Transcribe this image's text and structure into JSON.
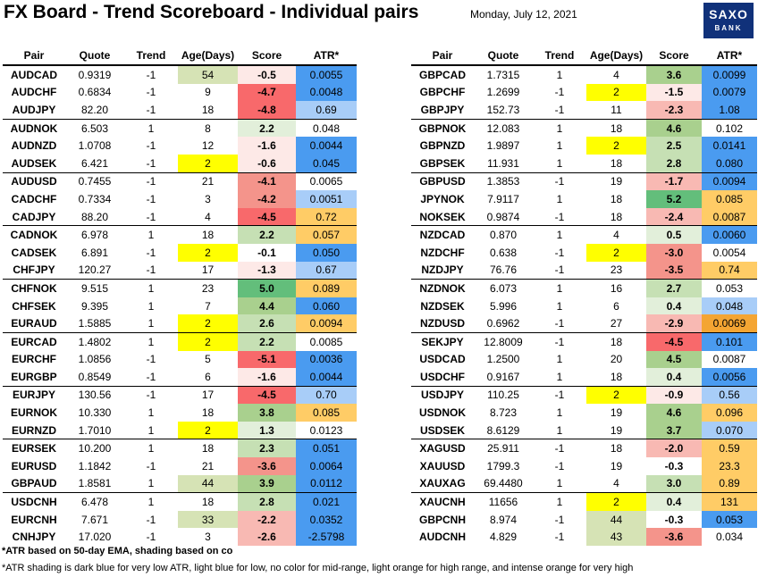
{
  "title": "FX Board - Trend Scoreboard - Individual pairs",
  "date": "Monday, July 12, 2021",
  "logo": {
    "line1": "SAXO",
    "line2": "BANK"
  },
  "headers": [
    "Pair",
    "Quote",
    "Trend",
    "Age(Days)",
    "Score",
    "ATR*"
  ],
  "colors": {
    "age_green": "#d6e3b5",
    "age_yellow": "#ffff00",
    "score_green_1": "#e2efda",
    "score_green_2": "#c6e0b4",
    "score_green_3": "#a9d08e",
    "score_green_4": "#63be7b",
    "score_red_1": "#fde9e7",
    "score_red_2": "#f8b9b3",
    "score_red_3": "#f4948b",
    "score_red_4": "#f8696b",
    "atr_dark_blue": "#4a9bf0",
    "atr_light_blue": "#a8cdf8",
    "atr_light_orange": "#ffcc66",
    "atr_intense_orange": "#f4a533"
  },
  "left_rows": [
    {
      "pair": "AUDCAD",
      "quote": "0.9319",
      "trend": "-1",
      "age": "54",
      "score": "-0.5",
      "atr": "0.0055",
      "age_bg": "age_green",
      "score_bg": "score_red_1",
      "atr_bg": "atr_dark_blue"
    },
    {
      "pair": "AUDCHF",
      "quote": "0.6834",
      "trend": "-1",
      "age": "9",
      "score": "-4.7",
      "atr": "0.0048",
      "age_bg": "",
      "score_bg": "score_red_4",
      "atr_bg": "atr_dark_blue"
    },
    {
      "pair": "AUDJPY",
      "quote": "82.20",
      "trend": "-1",
      "age": "18",
      "score": "-4.8",
      "atr": "0.69",
      "age_bg": "",
      "score_bg": "score_red_4",
      "atr_bg": "atr_light_blue"
    },
    {
      "pair": "AUDNOK",
      "quote": "6.503",
      "trend": "1",
      "age": "8",
      "score": "2.2",
      "atr": "0.048",
      "age_bg": "",
      "score_bg": "score_green_1",
      "atr_bg": "",
      "sep": true
    },
    {
      "pair": "AUDNZD",
      "quote": "1.0708",
      "trend": "-1",
      "age": "12",
      "score": "-1.6",
      "atr": "0.0044",
      "age_bg": "",
      "score_bg": "score_red_1",
      "atr_bg": "atr_dark_blue"
    },
    {
      "pair": "AUDSEK",
      "quote": "6.421",
      "trend": "-1",
      "age": "2",
      "score": "-0.6",
      "atr": "0.045",
      "age_bg": "age_yellow",
      "score_bg": "score_red_1",
      "atr_bg": "atr_dark_blue"
    },
    {
      "pair": "AUDUSD",
      "quote": "0.7455",
      "trend": "-1",
      "age": "21",
      "score": "-4.1",
      "atr": "0.0065",
      "age_bg": "",
      "score_bg": "score_red_3",
      "atr_bg": "",
      "sep": true
    },
    {
      "pair": "CADCHF",
      "quote": "0.7334",
      "trend": "-1",
      "age": "3",
      "score": "-4.2",
      "atr": "0.0051",
      "age_bg": "",
      "score_bg": "score_red_3",
      "atr_bg": "atr_light_blue"
    },
    {
      "pair": "CADJPY",
      "quote": "88.20",
      "trend": "-1",
      "age": "4",
      "score": "-4.5",
      "atr": "0.72",
      "age_bg": "",
      "score_bg": "score_red_4",
      "atr_bg": "atr_light_orange"
    },
    {
      "pair": "CADNOK",
      "quote": "6.978",
      "trend": "1",
      "age": "18",
      "score": "2.2",
      "atr": "0.057",
      "age_bg": "",
      "score_bg": "score_green_2",
      "atr_bg": "atr_light_orange",
      "sep": true
    },
    {
      "pair": "CADSEK",
      "quote": "6.891",
      "trend": "-1",
      "age": "2",
      "score": "-0.1",
      "atr": "0.050",
      "age_bg": "age_yellow",
      "score_bg": "",
      "atr_bg": "atr_dark_blue"
    },
    {
      "pair": "CHFJPY",
      "quote": "120.27",
      "trend": "-1",
      "age": "17",
      "score": "-1.3",
      "atr": "0.67",
      "age_bg": "",
      "score_bg": "score_red_1",
      "atr_bg": "atr_light_blue"
    },
    {
      "pair": "CHFNOK",
      "quote": "9.515",
      "trend": "1",
      "age": "23",
      "score": "5.0",
      "atr": "0.089",
      "age_bg": "",
      "score_bg": "score_green_4",
      "atr_bg": "atr_light_orange",
      "sep": true
    },
    {
      "pair": "CHFSEK",
      "quote": "9.395",
      "trend": "1",
      "age": "7",
      "score": "4.4",
      "atr": "0.060",
      "age_bg": "",
      "score_bg": "score_green_3",
      "atr_bg": "atr_dark_blue"
    },
    {
      "pair": "EURAUD",
      "quote": "1.5885",
      "trend": "1",
      "age": "2",
      "score": "2.6",
      "atr": "0.0094",
      "age_bg": "age_yellow",
      "score_bg": "score_green_2",
      "atr_bg": "atr_light_orange"
    },
    {
      "pair": "EURCAD",
      "quote": "1.4802",
      "trend": "1",
      "age": "2",
      "score": "2.2",
      "atr": "0.0085",
      "age_bg": "age_yellow",
      "score_bg": "score_green_2",
      "atr_bg": "",
      "sep": true
    },
    {
      "pair": "EURCHF",
      "quote": "1.0856",
      "trend": "-1",
      "age": "5",
      "score": "-5.1",
      "atr": "0.0036",
      "age_bg": "",
      "score_bg": "score_red_4",
      "atr_bg": "atr_dark_blue"
    },
    {
      "pair": "EURGBP",
      "quote": "0.8549",
      "trend": "-1",
      "age": "6",
      "score": "-1.6",
      "atr": "0.0044",
      "age_bg": "",
      "score_bg": "score_red_1",
      "atr_bg": "atr_dark_blue"
    },
    {
      "pair": "EURJPY",
      "quote": "130.56",
      "trend": "-1",
      "age": "17",
      "score": "-4.5",
      "atr": "0.70",
      "age_bg": "",
      "score_bg": "score_red_4",
      "atr_bg": "atr_light_blue",
      "sep": true
    },
    {
      "pair": "EURNOK",
      "quote": "10.330",
      "trend": "1",
      "age": "18",
      "score": "3.8",
      "atr": "0.085",
      "age_bg": "",
      "score_bg": "score_green_3",
      "atr_bg": "atr_light_orange"
    },
    {
      "pair": "EURNZD",
      "quote": "1.7010",
      "trend": "1",
      "age": "2",
      "score": "1.3",
      "atr": "0.0123",
      "age_bg": "age_yellow",
      "score_bg": "score_green_1",
      "atr_bg": ""
    },
    {
      "pair": "EURSEK",
      "quote": "10.200",
      "trend": "1",
      "age": "18",
      "score": "2.3",
      "atr": "0.051",
      "age_bg": "",
      "score_bg": "score_green_2",
      "atr_bg": "atr_dark_blue",
      "sep": true
    },
    {
      "pair": "EURUSD",
      "quote": "1.1842",
      "trend": "-1",
      "age": "21",
      "score": "-3.6",
      "atr": "0.0064",
      "age_bg": "",
      "score_bg": "score_red_3",
      "atr_bg": "atr_dark_blue"
    },
    {
      "pair": "GBPAUD",
      "quote": "1.8581",
      "trend": "1",
      "age": "44",
      "score": "3.9",
      "atr": "0.0112",
      "age_bg": "age_green",
      "score_bg": "score_green_3",
      "atr_bg": "atr_dark_blue"
    },
    {
      "pair": "USDCNH",
      "quote": "6.478",
      "trend": "1",
      "age": "18",
      "score": "2.8",
      "atr": "0.021",
      "age_bg": "",
      "score_bg": "score_green_2",
      "atr_bg": "atr_dark_blue",
      "sep": true
    },
    {
      "pair": "EURCNH",
      "quote": "7.671",
      "trend": "-1",
      "age": "33",
      "score": "-2.2",
      "atr": "0.0352",
      "age_bg": "age_green",
      "score_bg": "score_red_2",
      "atr_bg": "atr_dark_blue"
    },
    {
      "pair": "CNHJPY",
      "quote": "17.020",
      "trend": "-1",
      "age": "3",
      "score": "-2.6",
      "atr": "-2.5798",
      "age_bg": "",
      "score_bg": "score_red_2",
      "atr_bg": "atr_dark_blue"
    }
  ],
  "right_rows": [
    {
      "pair": "GBPCAD",
      "quote": "1.7315",
      "trend": "1",
      "age": "4",
      "score": "3.6",
      "atr": "0.0099",
      "age_bg": "",
      "score_bg": "score_green_3",
      "atr_bg": "atr_dark_blue"
    },
    {
      "pair": "GBPCHF",
      "quote": "1.2699",
      "trend": "-1",
      "age": "2",
      "score": "-1.5",
      "atr": "0.0079",
      "age_bg": "age_yellow",
      "score_bg": "score_red_1",
      "atr_bg": "atr_dark_blue"
    },
    {
      "pair": "GBPJPY",
      "quote": "152.73",
      "trend": "-1",
      "age": "11",
      "score": "-2.3",
      "atr": "1.08",
      "age_bg": "",
      "score_bg": "score_red_2",
      "atr_bg": "atr_dark_blue"
    },
    {
      "pair": "GBPNOK",
      "quote": "12.083",
      "trend": "1",
      "age": "18",
      "score": "4.6",
      "atr": "0.102",
      "age_bg": "",
      "score_bg": "score_green_3",
      "atr_bg": "",
      "sep": true
    },
    {
      "pair": "GBPNZD",
      "quote": "1.9897",
      "trend": "1",
      "age": "2",
      "score": "2.5",
      "atr": "0.0141",
      "age_bg": "age_yellow",
      "score_bg": "score_green_2",
      "atr_bg": "atr_dark_blue"
    },
    {
      "pair": "GBPSEK",
      "quote": "11.931",
      "trend": "1",
      "age": "18",
      "score": "2.8",
      "atr": "0.080",
      "age_bg": "",
      "score_bg": "score_green_2",
      "atr_bg": "atr_dark_blue"
    },
    {
      "pair": "GBPUSD",
      "quote": "1.3853",
      "trend": "-1",
      "age": "19",
      "score": "-1.7",
      "atr": "0.0094",
      "age_bg": "",
      "score_bg": "score_red_2",
      "atr_bg": "atr_dark_blue",
      "sep": true
    },
    {
      "pair": "JPYNOK",
      "quote": "7.9117",
      "trend": "1",
      "age": "18",
      "score": "5.2",
      "atr": "0.085",
      "age_bg": "",
      "score_bg": "score_green_4",
      "atr_bg": "atr_light_orange"
    },
    {
      "pair": "NOKSEK",
      "quote": "0.9874",
      "trend": "-1",
      "age": "18",
      "score": "-2.4",
      "atr": "0.0087",
      "age_bg": "",
      "score_bg": "score_red_2",
      "atr_bg": "atr_light_orange"
    },
    {
      "pair": "NZDCAD",
      "quote": "0.870",
      "trend": "1",
      "age": "4",
      "score": "0.5",
      "atr": "0.0060",
      "age_bg": "",
      "score_bg": "score_green_1",
      "atr_bg": "atr_dark_blue",
      "sep": true
    },
    {
      "pair": "NZDCHF",
      "quote": "0.638",
      "trend": "-1",
      "age": "2",
      "score": "-3.0",
      "atr": "0.0054",
      "age_bg": "age_yellow",
      "score_bg": "score_red_3",
      "atr_bg": ""
    },
    {
      "pair": "NZDJPY",
      "quote": "76.76",
      "trend": "-1",
      "age": "23",
      "score": "-3.5",
      "atr": "0.74",
      "age_bg": "",
      "score_bg": "score_red_3",
      "atr_bg": "atr_light_orange"
    },
    {
      "pair": "NZDNOK",
      "quote": "6.073",
      "trend": "1",
      "age": "16",
      "score": "2.7",
      "atr": "0.053",
      "age_bg": "",
      "score_bg": "score_green_2",
      "atr_bg": "",
      "sep": true
    },
    {
      "pair": "NZDSEK",
      "quote": "5.996",
      "trend": "1",
      "age": "6",
      "score": "0.4",
      "atr": "0.048",
      "age_bg": "",
      "score_bg": "score_green_1",
      "atr_bg": "atr_light_blue"
    },
    {
      "pair": "NZDUSD",
      "quote": "0.6962",
      "trend": "-1",
      "age": "27",
      "score": "-2.9",
      "atr": "0.0069",
      "age_bg": "",
      "score_bg": "score_red_2",
      "atr_bg": "atr_intense_orange"
    },
    {
      "pair": "SEKJPY",
      "quote": "12.8009",
      "trend": "-1",
      "age": "18",
      "score": "-4.5",
      "atr": "0.101",
      "age_bg": "",
      "score_bg": "score_red_4",
      "atr_bg": "atr_dark_blue",
      "sep": true
    },
    {
      "pair": "USDCAD",
      "quote": "1.2500",
      "trend": "1",
      "age": "20",
      "score": "4.5",
      "atr": "0.0087",
      "age_bg": "",
      "score_bg": "score_green_3",
      "atr_bg": ""
    },
    {
      "pair": "USDCHF",
      "quote": "0.9167",
      "trend": "1",
      "age": "18",
      "score": "0.4",
      "atr": "0.0056",
      "age_bg": "",
      "score_bg": "score_green_1",
      "atr_bg": "atr_dark_blue"
    },
    {
      "pair": "USDJPY",
      "quote": "110.25",
      "trend": "-1",
      "age": "2",
      "score": "-0.9",
      "atr": "0.56",
      "age_bg": "age_yellow",
      "score_bg": "score_red_1",
      "atr_bg": "atr_light_blue",
      "sep": true
    },
    {
      "pair": "USDNOK",
      "quote": "8.723",
      "trend": "1",
      "age": "19",
      "score": "4.6",
      "atr": "0.096",
      "age_bg": "",
      "score_bg": "score_green_3",
      "atr_bg": "atr_light_orange"
    },
    {
      "pair": "USDSEK",
      "quote": "8.6129",
      "trend": "1",
      "age": "19",
      "score": "3.7",
      "atr": "0.070",
      "age_bg": "",
      "score_bg": "score_green_3",
      "atr_bg": "atr_light_blue"
    },
    {
      "pair": "XAGUSD",
      "quote": "25.911",
      "trend": "-1",
      "age": "18",
      "score": "-2.0",
      "atr": "0.59",
      "age_bg": "",
      "score_bg": "score_red_2",
      "atr_bg": "atr_light_orange",
      "sep": true
    },
    {
      "pair": "XAUUSD",
      "quote": "1799.3",
      "trend": "-1",
      "age": "19",
      "score": "-0.3",
      "atr": "23.3",
      "age_bg": "",
      "score_bg": "",
      "atr_bg": "atr_light_orange"
    },
    {
      "pair": "XAUXAG",
      "quote": "69.4480",
      "trend": "1",
      "age": "4",
      "score": "3.0",
      "atr": "0.89",
      "age_bg": "",
      "score_bg": "score_green_2",
      "atr_bg": "atr_light_orange"
    },
    {
      "pair": "XAUCNH",
      "quote": "11656",
      "trend": "1",
      "age": "2",
      "score": "0.4",
      "atr": "131",
      "age_bg": "age_yellow",
      "score_bg": "score_green_1",
      "atr_bg": "atr_light_orange",
      "sep": true
    },
    {
      "pair": "GBPCNH",
      "quote": "8.974",
      "trend": "-1",
      "age": "44",
      "score": "-0.3",
      "atr": "0.053",
      "age_bg": "age_green",
      "score_bg": "",
      "atr_bg": "atr_dark_blue"
    },
    {
      "pair": "AUDCNH",
      "quote": "4.829",
      "trend": "-1",
      "age": "43",
      "score": "-3.6",
      "atr": "0.034",
      "age_bg": "age_green",
      "score_bg": "score_red_3",
      "atr_bg": ""
    }
  ],
  "footnote1": "*ATR based on 50-day EMA, shading based on co",
  "footnote2": "*ATR shading is dark blue for very low ATR, light blue for low, no color for mid-range, light orange for high range, and intense orange for very high"
}
